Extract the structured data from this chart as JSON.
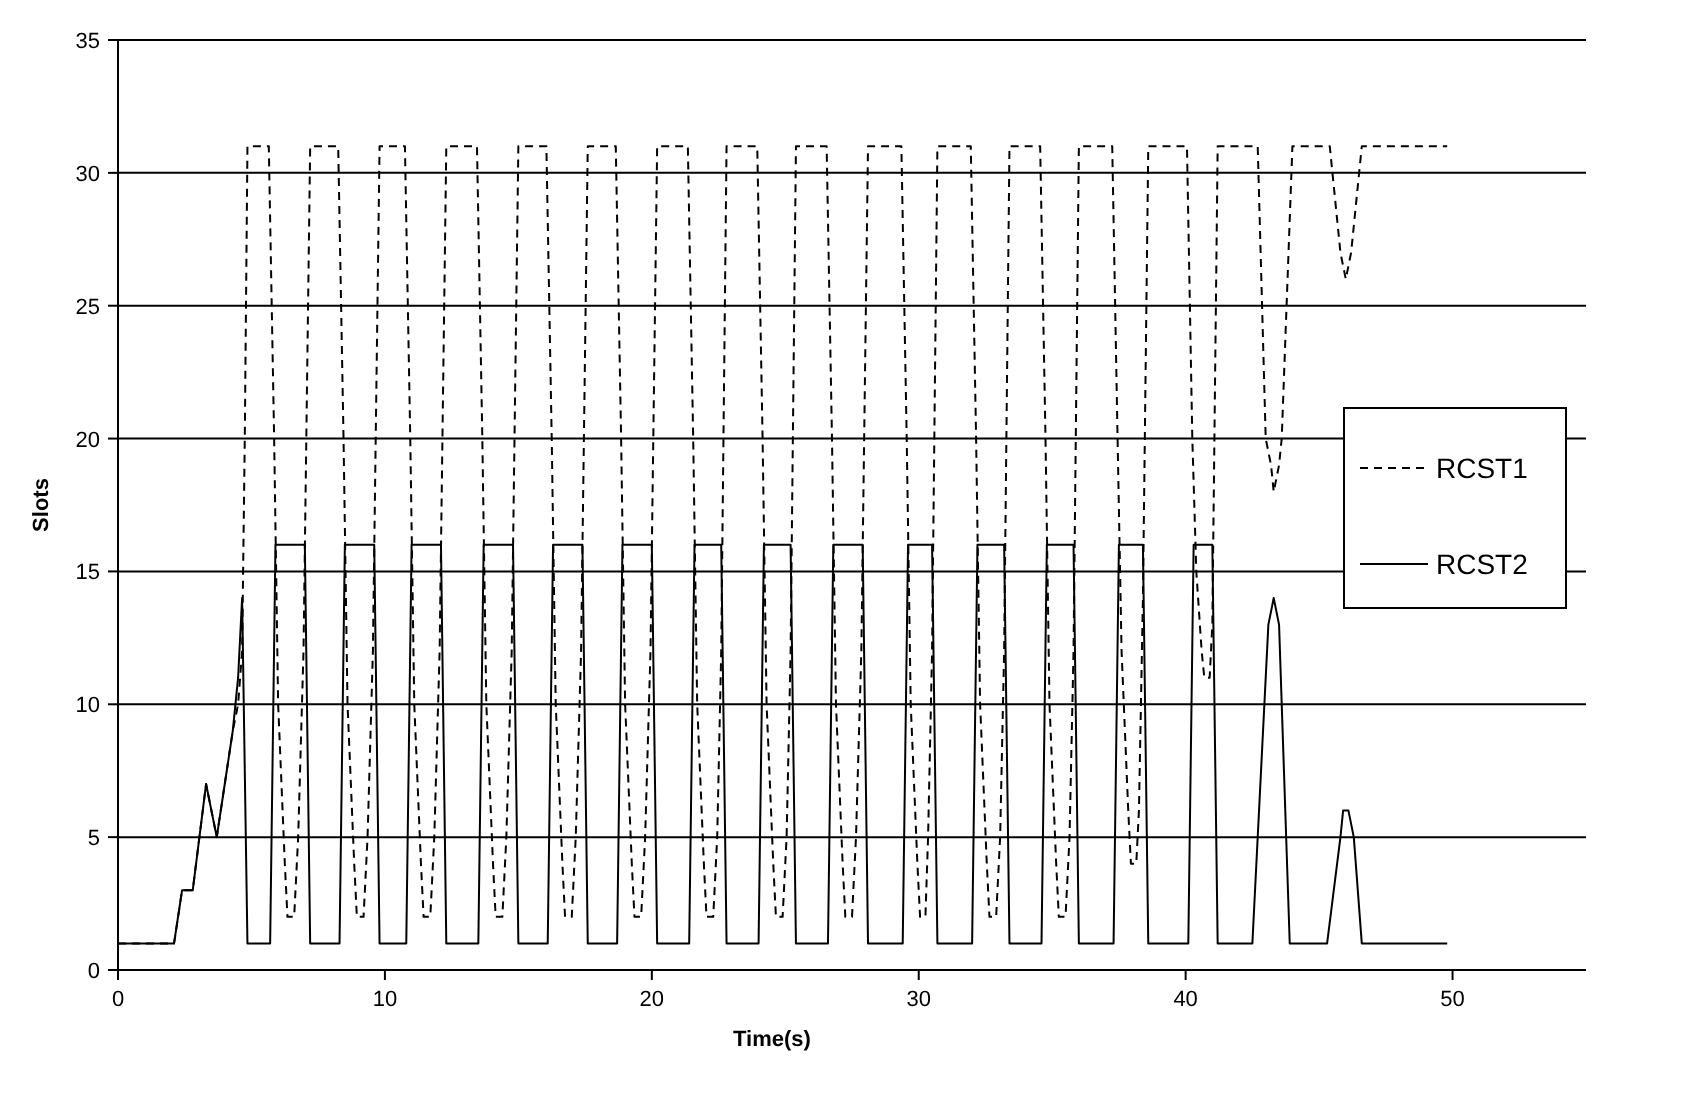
{
  "chart_data": {
    "type": "line",
    "xlabel": "Time(s)",
    "ylabel": "Slots",
    "xlim": [
      0,
      55
    ],
    "xticks": [
      0,
      10,
      20,
      30,
      40,
      50
    ],
    "ylim": [
      0,
      35
    ],
    "yticks": [
      0,
      5,
      10,
      15,
      20,
      25,
      30,
      35
    ],
    "grid": "y",
    "legend": "right",
    "marker": "none",
    "series": [
      {
        "name": "RCST1",
        "color": "#000000",
        "line_style": "dashed",
        "x": [
          0,
          2.1,
          2.4,
          2.8,
          3.3,
          3.7,
          4.0,
          4.3,
          4.5,
          4.65,
          4.75,
          4.85,
          5.65,
          5.85,
          6.0,
          6.25,
          6.35,
          6.6,
          6.75,
          6.95,
          7.2,
          8.25,
          8.45,
          8.6,
          8.85,
          8.95,
          9.2,
          9.35,
          9.55,
          9.8,
          10.75,
          10.95,
          11.1,
          11.35,
          11.45,
          11.7,
          11.85,
          12.05,
          12.3,
          13.45,
          13.65,
          13.8,
          14.05,
          14.15,
          14.4,
          14.55,
          14.75,
          15,
          16.05,
          16.25,
          16.4,
          16.65,
          16.75,
          17,
          17.15,
          17.35,
          17.6,
          18.65,
          18.85,
          19,
          19.25,
          19.35,
          19.6,
          19.75,
          19.95,
          20.2,
          21.35,
          21.55,
          21.7,
          21.95,
          22.05,
          22.3,
          22.45,
          22.6,
          22.8,
          23.95,
          24.15,
          24.3,
          24.55,
          24.65,
          24.9,
          25.05,
          25.2,
          25.4,
          26.55,
          26.75,
          26.9,
          27.15,
          27.25,
          27.5,
          27.65,
          27.85,
          28.1,
          29.35,
          29.55,
          29.7,
          29.95,
          30.05,
          30.25,
          30.35,
          30.5,
          30.7,
          31.95,
          32.15,
          32.3,
          32.55,
          32.65,
          32.9,
          33.05,
          33.2,
          33.4,
          34.55,
          34.75,
          34.9,
          35.15,
          35.25,
          35.5,
          35.65,
          35.8,
          36,
          37.25,
          37.45,
          37.6,
          37.85,
          37.95,
          38.15,
          38.25,
          38.4,
          38.6,
          40.05,
          40.25,
          40.4,
          40.6,
          40.7,
          40.9,
          41.0,
          41.2,
          42.7,
          43.0,
          43.2,
          43.3,
          43.5,
          43.6,
          44.0,
          45.4,
          45.8,
          46,
          46.2,
          46.6,
          49.8
        ],
        "values": [
          1,
          1,
          3,
          3,
          7,
          5,
          7,
          9,
          10,
          12,
          20,
          31,
          31,
          20,
          10,
          4,
          2,
          2,
          5,
          12,
          31,
          31,
          20,
          10,
          4,
          2,
          2,
          5,
          12,
          31,
          31,
          20,
          10,
          4,
          2,
          2,
          5,
          12,
          31,
          31,
          20,
          10,
          4,
          2,
          2,
          5,
          12,
          31,
          31,
          20,
          10,
          4,
          2,
          2,
          5,
          12,
          31,
          31,
          20,
          10,
          4,
          2,
          2,
          5,
          12,
          31,
          31,
          20,
          10,
          4,
          2,
          2,
          5,
          12,
          31,
          31,
          20,
          10,
          4,
          2,
          2,
          5,
          12,
          31,
          31,
          20,
          10,
          4,
          2,
          2,
          5,
          12,
          31,
          31,
          20,
          10,
          4,
          2,
          2,
          5,
          12,
          31,
          31,
          20,
          10,
          4,
          2,
          2,
          5,
          12,
          31,
          31,
          20,
          10,
          4,
          2,
          2,
          5,
          12,
          31,
          31,
          20,
          12,
          6,
          4,
          4,
          6,
          14,
          31,
          31,
          20,
          15,
          12,
          11,
          11,
          13,
          31,
          31,
          20,
          19,
          18,
          19,
          20,
          31,
          31,
          27,
          26,
          27,
          31,
          31
        ]
      },
      {
        "name": "RCST2",
        "color": "#000000",
        "line_style": "solid",
        "x": [
          0,
          2.1,
          2.4,
          2.8,
          3.3,
          3.7,
          4.0,
          4.3,
          4.5,
          4.65,
          4.85,
          5.7,
          5.9,
          7.0,
          7.2,
          8.3,
          8.5,
          9.6,
          9.8,
          10.8,
          11,
          12.1,
          12.3,
          13.5,
          13.7,
          14.8,
          15,
          16.1,
          16.3,
          17.4,
          17.6,
          18.7,
          18.9,
          20,
          20.2,
          21.4,
          21.6,
          22.6,
          22.8,
          24,
          24.2,
          25.2,
          25.4,
          26.6,
          26.8,
          27.9,
          28.1,
          29.4,
          29.6,
          30.5,
          30.7,
          32,
          32.2,
          33.2,
          33.4,
          34.6,
          34.8,
          35.8,
          36,
          37.3,
          37.5,
          38.4,
          38.6,
          40.1,
          40.3,
          41.0,
          41.2,
          42.5,
          43.1,
          43.3,
          43.5,
          43.9,
          45.3,
          45.8,
          45.9,
          46.1,
          46.3,
          46.6,
          49.8
        ],
        "values": [
          1,
          1,
          3,
          3,
          7,
          5,
          7,
          9,
          11,
          14,
          1,
          1,
          16,
          16,
          1,
          1,
          16,
          16,
          1,
          1,
          16,
          16,
          1,
          1,
          16,
          16,
          1,
          1,
          16,
          16,
          1,
          1,
          16,
          16,
          1,
          1,
          16,
          16,
          1,
          1,
          16,
          16,
          1,
          1,
          16,
          16,
          1,
          1,
          16,
          16,
          1,
          1,
          16,
          16,
          1,
          1,
          16,
          16,
          1,
          1,
          16,
          16,
          1,
          1,
          16,
          16,
          1,
          1,
          13,
          14,
          13,
          1,
          1,
          5,
          6,
          6,
          5,
          1,
          1
        ]
      }
    ]
  }
}
